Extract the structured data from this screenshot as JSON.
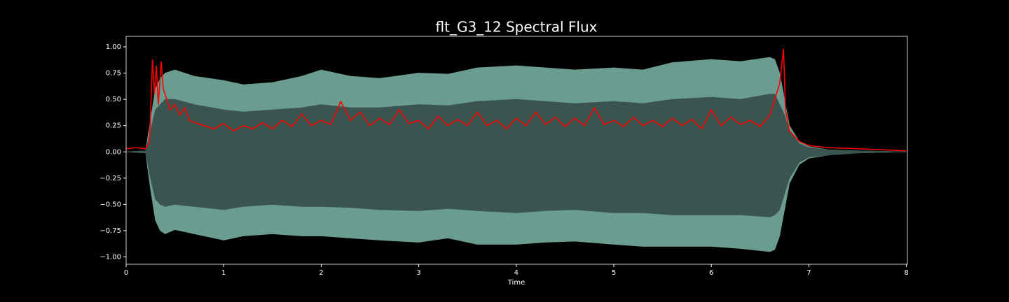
{
  "chart_data": {
    "type": "waveform",
    "title": "flt_G3_12 Spectral Flux",
    "x_label": "Time",
    "xlim": [
      0,
      8.01
    ],
    "ylim": [
      -1.07,
      1.1
    ],
    "xticks": [
      0,
      1,
      2,
      3,
      4,
      5,
      6,
      7,
      8
    ],
    "yticks": [
      {
        "value": 1,
        "label": "1.00"
      },
      {
        "value": 0.75,
        "label": "0.75"
      },
      {
        "value": 0.5,
        "label": "0.50"
      },
      {
        "value": 0.25,
        "label": "0.25"
      },
      {
        "value": 0,
        "label": "0.00"
      },
      {
        "value": -0.25,
        "label": "−0.25"
      },
      {
        "value": -0.5,
        "label": "−0.50"
      },
      {
        "value": -0.75,
        "label": "−0.75"
      },
      {
        "value": -1,
        "label": "−1.00"
      }
    ],
    "series": [
      {
        "type": "area",
        "color": "#6a9c8f",
        "x": [
          0,
          0.2,
          0.25,
          0.3,
          0.35,
          0.4,
          0.5,
          0.7,
          1.0,
          1.2,
          1.5,
          1.8,
          2.0,
          2.3,
          2.6,
          3.0,
          3.3,
          3.6,
          4.0,
          4.3,
          4.6,
          5.0,
          5.3,
          5.6,
          6.0,
          6.3,
          6.6,
          6.65,
          6.7,
          6.75,
          6.8,
          6.9,
          7.0,
          7.2,
          7.5,
          8.0
        ],
        "upper": [
          0,
          0.01,
          0.3,
          0.6,
          0.7,
          0.75,
          0.78,
          0.72,
          0.68,
          0.64,
          0.66,
          0.72,
          0.78,
          0.72,
          0.7,
          0.75,
          0.74,
          0.8,
          0.82,
          0.8,
          0.78,
          0.8,
          0.78,
          0.85,
          0.88,
          0.86,
          0.9,
          0.88,
          0.75,
          0.5,
          0.25,
          0.1,
          0.05,
          0.02,
          0.01,
          0
        ],
        "lower": [
          0,
          -0.01,
          -0.35,
          -0.65,
          -0.75,
          -0.78,
          -0.74,
          -0.78,
          -0.84,
          -0.8,
          -0.78,
          -0.8,
          -0.8,
          -0.82,
          -0.84,
          -0.86,
          -0.82,
          -0.88,
          -0.88,
          -0.86,
          -0.85,
          -0.88,
          -0.9,
          -0.9,
          -0.9,
          -0.92,
          -0.95,
          -0.93,
          -0.8,
          -0.55,
          -0.3,
          -0.12,
          -0.06,
          -0.03,
          -0.01,
          0
        ]
      },
      {
        "type": "area",
        "color": "#3a554f",
        "x": [
          0,
          0.2,
          0.25,
          0.3,
          0.35,
          0.4,
          0.5,
          0.7,
          1.0,
          1.2,
          1.5,
          1.8,
          2.0,
          2.3,
          2.6,
          3.0,
          3.3,
          3.6,
          4.0,
          4.3,
          4.6,
          5.0,
          5.3,
          5.6,
          6.0,
          6.3,
          6.6,
          6.65,
          6.7,
          6.75,
          6.8,
          6.9,
          7.0,
          7.2,
          7.5,
          8.0
        ],
        "upper": [
          0,
          0.01,
          0.2,
          0.4,
          0.45,
          0.5,
          0.5,
          0.45,
          0.4,
          0.38,
          0.4,
          0.42,
          0.45,
          0.42,
          0.42,
          0.45,
          0.44,
          0.48,
          0.5,
          0.48,
          0.46,
          0.48,
          0.46,
          0.5,
          0.52,
          0.5,
          0.55,
          0.55,
          0.45,
          0.35,
          0.2,
          0.08,
          0.04,
          0.02,
          0.01,
          0
        ],
        "lower": [
          0,
          -0.01,
          -0.25,
          -0.45,
          -0.5,
          -0.52,
          -0.5,
          -0.52,
          -0.55,
          -0.52,
          -0.5,
          -0.52,
          -0.52,
          -0.53,
          -0.55,
          -0.56,
          -0.54,
          -0.56,
          -0.58,
          -0.56,
          -0.55,
          -0.58,
          -0.58,
          -0.6,
          -0.6,
          -0.6,
          -0.62,
          -0.6,
          -0.55,
          -0.4,
          -0.25,
          -0.1,
          -0.05,
          -0.03,
          -0.01,
          0
        ]
      },
      {
        "type": "line",
        "color": "#ff0000",
        "x": [
          0,
          0.1,
          0.2,
          0.24,
          0.26,
          0.27,
          0.29,
          0.31,
          0.33,
          0.36,
          0.38,
          0.4,
          0.45,
          0.5,
          0.55,
          0.6,
          0.65,
          0.7,
          0.8,
          0.9,
          1.0,
          1.1,
          1.2,
          1.3,
          1.4,
          1.5,
          1.6,
          1.7,
          1.8,
          1.9,
          2.0,
          2.1,
          2.2,
          2.3,
          2.4,
          2.5,
          2.6,
          2.7,
          2.8,
          2.9,
          3.0,
          3.1,
          3.2,
          3.3,
          3.4,
          3.5,
          3.6,
          3.7,
          3.8,
          3.9,
          4.0,
          4.1,
          4.2,
          4.3,
          4.4,
          4.5,
          4.6,
          4.7,
          4.8,
          4.9,
          5.0,
          5.1,
          5.2,
          5.3,
          5.4,
          5.5,
          5.6,
          5.7,
          5.8,
          5.9,
          6.0,
          6.1,
          6.2,
          6.3,
          6.4,
          6.5,
          6.6,
          6.65,
          6.7,
          6.74,
          6.76,
          6.8,
          6.9,
          7.0,
          7.2,
          7.5,
          8.0
        ],
        "values": [
          0.03,
          0.04,
          0.03,
          0.1,
          0.6,
          0.88,
          0.55,
          0.82,
          0.45,
          0.86,
          0.6,
          0.55,
          0.4,
          0.45,
          0.35,
          0.42,
          0.3,
          0.28,
          0.25,
          0.22,
          0.27,
          0.2,
          0.25,
          0.22,
          0.28,
          0.22,
          0.3,
          0.24,
          0.36,
          0.25,
          0.3,
          0.26,
          0.48,
          0.3,
          0.38,
          0.25,
          0.32,
          0.26,
          0.4,
          0.27,
          0.3,
          0.22,
          0.34,
          0.25,
          0.31,
          0.25,
          0.38,
          0.25,
          0.3,
          0.22,
          0.32,
          0.25,
          0.38,
          0.26,
          0.33,
          0.24,
          0.32,
          0.25,
          0.42,
          0.26,
          0.3,
          0.24,
          0.33,
          0.25,
          0.3,
          0.24,
          0.32,
          0.25,
          0.31,
          0.22,
          0.4,
          0.25,
          0.33,
          0.26,
          0.3,
          0.24,
          0.35,
          0.5,
          0.65,
          0.98,
          0.4,
          0.2,
          0.1,
          0.06,
          0.04,
          0.03,
          0.01
        ]
      }
    ]
  }
}
